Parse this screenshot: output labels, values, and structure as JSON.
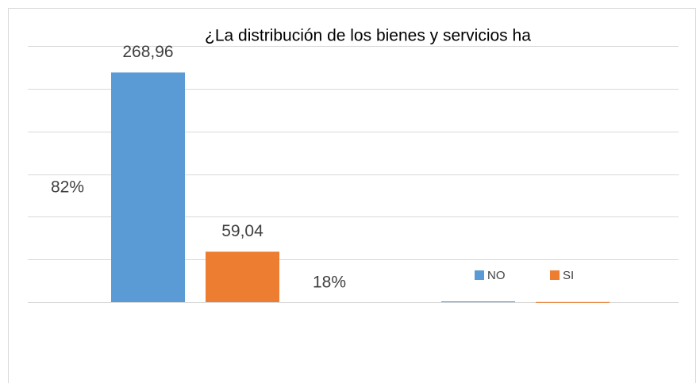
{
  "chart_data": {
    "type": "bar",
    "title": "¿La distribución de los bienes y servicios ha",
    "categories": [
      null,
      null
    ],
    "series": [
      {
        "name": "NO",
        "color": "#5b9bd5",
        "values": [
          268.96,
          0.82
        ],
        "value_labels": [
          "268,96",
          "82%"
        ]
      },
      {
        "name": "SI",
        "color": "#ed7d31",
        "values": [
          59.04,
          0.18
        ],
        "value_labels": [
          "59,04",
          "18%"
        ]
      }
    ],
    "ylim": [
      0,
      300
    ],
    "yticks": [
      0,
      50,
      100,
      150,
      200,
      250,
      300
    ],
    "grid": true,
    "legend": "right"
  }
}
